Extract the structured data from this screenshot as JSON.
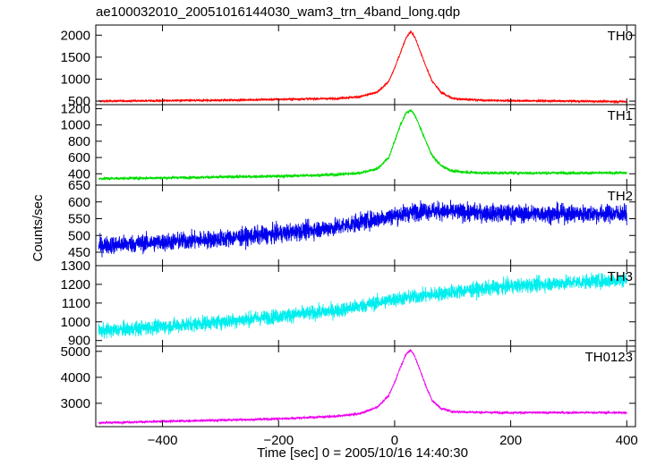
{
  "chart_data": {
    "type": "line",
    "title": "ae100032010_20051016144030_wam3_trn_4band_long.qdp",
    "xlabel": "Time [sec] 0 = 2005/10/16 14:40:30",
    "ylabel": "Counts/sec",
    "xlim": [
      -515,
      415
    ],
    "xticks": [
      -400,
      -200,
      0,
      200,
      400
    ],
    "xtick_labels": [
      "−400",
      "−200",
      "0",
      "200",
      "400"
    ],
    "grid": false,
    "panels": [
      {
        "name": "TH0",
        "color": "#ff0000",
        "ylim": [
          420,
          2230
        ],
        "yticks": [
          500,
          1000,
          1500,
          2000
        ],
        "ytick_labels": [
          "500",
          "1000",
          "1500",
          "2000"
        ],
        "x": [
          -510,
          -400,
          -300,
          -200,
          -100,
          -60,
          -30,
          -10,
          0,
          10,
          20,
          28,
          35,
          45,
          55,
          65,
          80,
          100,
          150,
          200,
          300,
          400
        ],
        "y": [
          500,
          510,
          520,
          540,
          560,
          600,
          700,
          950,
          1250,
          1600,
          1950,
          2080,
          1950,
          1600,
          1250,
          950,
          700,
          560,
          520,
          510,
          500,
          490
        ],
        "noise": 25
      },
      {
        "name": "TH1",
        "color": "#00dd00",
        "ylim": [
          260,
          1250
        ],
        "yticks": [
          400,
          600,
          800,
          1000,
          1200
        ],
        "ytick_labels": [
          "400",
          "600",
          "800",
          "1000",
          "1200"
        ],
        "x": [
          -510,
          -400,
          -300,
          -200,
          -100,
          -60,
          -30,
          -10,
          0,
          10,
          20,
          28,
          35,
          45,
          55,
          65,
          80,
          100,
          150,
          200,
          300,
          400
        ],
        "y": [
          340,
          350,
          360,
          370,
          390,
          410,
          460,
          600,
          800,
          1000,
          1150,
          1180,
          1120,
          950,
          780,
          620,
          500,
          430,
          410,
          410,
          410,
          410
        ],
        "noise": 18
      },
      {
        "name": "TH2",
        "color": "#0000ee",
        "ylim": [
          410,
          650
        ],
        "yticks": [
          450,
          500,
          550,
          600,
          650
        ],
        "ytick_labels": [
          "450",
          "500",
          "550",
          "600",
          "650"
        ],
        "x": [
          -510,
          -400,
          -300,
          -200,
          -100,
          0,
          50,
          100,
          200,
          300,
          400
        ],
        "y": [
          470,
          480,
          490,
          505,
          525,
          560,
          575,
          570,
          565,
          565,
          565
        ],
        "noise": 26
      },
      {
        "name": "TH3",
        "color": "#00eeee",
        "ylim": [
          870,
          1300
        ],
        "yticks": [
          900,
          1000,
          1100,
          1200,
          1300
        ],
        "ytick_labels": [
          "900",
          "1000",
          "1100",
          "1200",
          "1300"
        ],
        "x": [
          -510,
          -400,
          -300,
          -200,
          -100,
          0,
          100,
          200,
          300,
          400
        ],
        "y": [
          950,
          975,
          1000,
          1030,
          1060,
          1120,
          1160,
          1190,
          1210,
          1225
        ],
        "noise": 38
      },
      {
        "name": "TH0123",
        "color": "#ee00ee",
        "ylim": [
          2100,
          5200
        ],
        "yticks": [
          3000,
          4000,
          5000
        ],
        "ytick_labels": [
          "3000",
          "4000",
          "5000"
        ],
        "x": [
          -510,
          -400,
          -300,
          -200,
          -100,
          -60,
          -30,
          -10,
          0,
          10,
          20,
          28,
          35,
          45,
          55,
          65,
          80,
          100,
          150,
          200,
          300,
          400
        ],
        "y": [
          2250,
          2300,
          2350,
          2400,
          2500,
          2600,
          2850,
          3300,
          3800,
          4400,
          4900,
          5050,
          4800,
          4200,
          3600,
          3100,
          2800,
          2680,
          2650,
          2640,
          2640,
          2640
        ],
        "noise": 45
      }
    ]
  }
}
